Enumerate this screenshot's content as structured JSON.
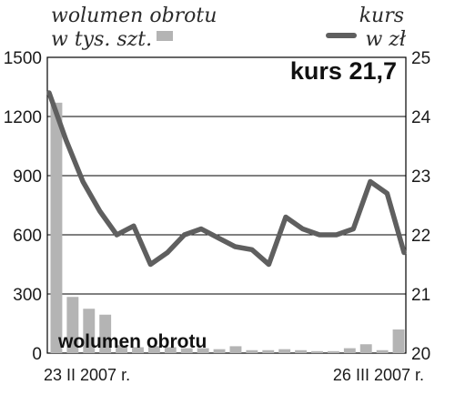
{
  "chart_data": {
    "type": "bar+line",
    "legend": {
      "volume_line1": "wolumen obrotu",
      "volume_line2": "w tys. szt.",
      "price_line1": "kurs",
      "price_line2": "w zł"
    },
    "headline": "kurs 21,7",
    "inner_label": "wolumen obrotu",
    "x_labels": {
      "start": "23 II 2007 r.",
      "end": "26 III 2007 r."
    },
    "left_axis": {
      "min": 0,
      "max": 1500,
      "ticks": [
        "1500",
        "1200",
        "900",
        "600",
        "300",
        "0"
      ]
    },
    "right_axis": {
      "min": 20,
      "max": 25,
      "ticks": [
        "25",
        "24",
        "23",
        "22",
        "21",
        "20"
      ]
    },
    "grid": true,
    "colors": {
      "bar": "#b4b4b4",
      "line": "#5f5f5f",
      "grid": "#000000",
      "text": "#1a1a1a",
      "legend_text": "#2a2a2a"
    },
    "series": [
      {
        "kind": "bar",
        "axis": "left",
        "values": [
          1270,
          285,
          225,
          195,
          40,
          30,
          35,
          30,
          25,
          25,
          20,
          35,
          15,
          15,
          20,
          15,
          10,
          10,
          25,
          45,
          15,
          120
        ]
      },
      {
        "kind": "line",
        "axis": "right",
        "values": [
          24.4,
          23.6,
          22.9,
          22.4,
          22.0,
          22.15,
          21.5,
          21.7,
          22.0,
          22.1,
          21.95,
          21.8,
          21.75,
          21.5,
          22.3,
          22.1,
          22.0,
          22.0,
          22.1,
          22.9,
          22.7,
          21.7
        ]
      }
    ]
  }
}
